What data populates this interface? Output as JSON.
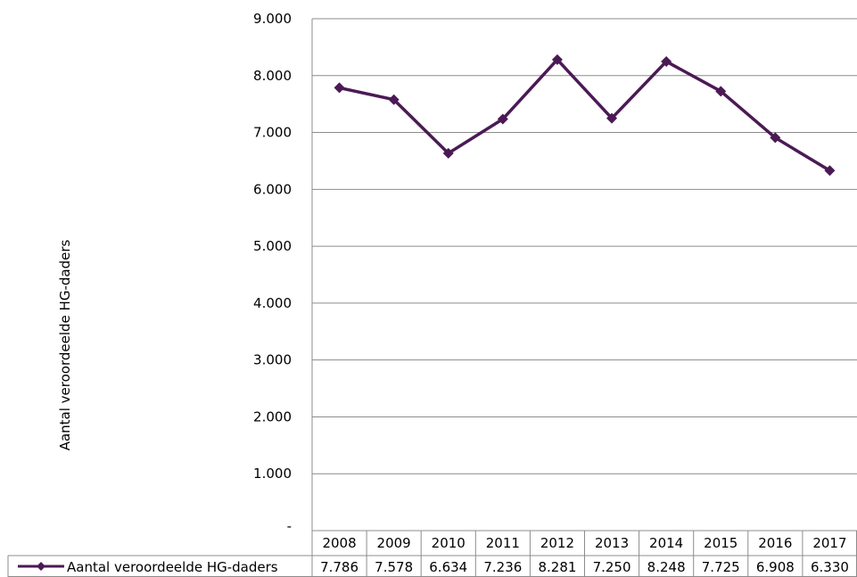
{
  "chart_data": {
    "type": "line",
    "ylabel": "Aantal veroordeelde HG-daders",
    "ylim": [
      0,
      9000
    ],
    "yticks": [
      "-",
      "1.000",
      "2.000",
      "3.000",
      "4.000",
      "5.000",
      "6.000",
      "7.000",
      "8.000",
      "9.000"
    ],
    "grid": true,
    "categories": [
      "2008",
      "2009",
      "2010",
      "2011",
      "2012",
      "2013",
      "2014",
      "2015",
      "2016",
      "2017"
    ],
    "series": [
      {
        "name": "Aantal veroordeelde HG-daders",
        "color": "#4b1a55",
        "values": [
          7786,
          7578,
          6634,
          7236,
          8281,
          7250,
          8248,
          7725,
          6908,
          6330
        ],
        "value_labels": [
          "7.786",
          "7.578",
          "6.634",
          "7.236",
          "8.281",
          "7.250",
          "8.248",
          "7.725",
          "6.908",
          "6.330"
        ]
      }
    ]
  }
}
